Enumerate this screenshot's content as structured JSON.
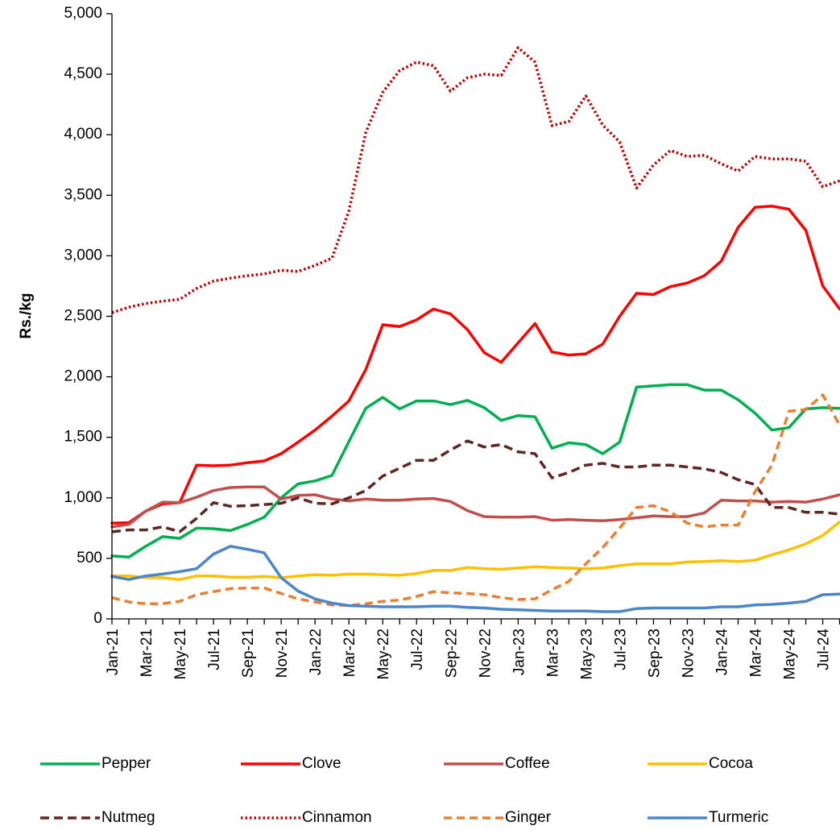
{
  "chart_data": {
    "type": "line",
    "title": "",
    "xlabel": "",
    "ylabel": "Rs./kg",
    "ylim": [
      0,
      5000
    ],
    "yticks": [
      "0",
      "500",
      "1,000",
      "1,500",
      "2,000",
      "2,500",
      "3,000",
      "3,500",
      "4,000",
      "4,500",
      "5,000"
    ],
    "x": [
      "Jan-21",
      "Feb-21",
      "Mar-21",
      "Apr-21",
      "May-21",
      "Jun-21",
      "Jul-21",
      "Aug-21",
      "Sep-21",
      "Oct-21",
      "Nov-21",
      "Dec-21",
      "Jan-22",
      "Feb-22",
      "Mar-22",
      "Apr-22",
      "May-22",
      "Jun-22",
      "Jul-22",
      "Aug-22",
      "Sep-22",
      "Oct-22",
      "Nov-22",
      "Dec-22",
      "Jan-23",
      "Feb-23",
      "Mar-23",
      "Apr-23",
      "May-23",
      "Jun-23",
      "Jul-23",
      "Aug-23",
      "Sep-23",
      "Oct-23",
      "Nov-23",
      "Dec-23",
      "Jan-24",
      "Feb-24",
      "Mar-24",
      "Apr-24",
      "May-24",
      "Jun-24",
      "Jul-24",
      "Aug-24"
    ],
    "x_tick_labels": [
      "Jan-21",
      "Mar-21",
      "May-21",
      "Jul-21",
      "Sep-21",
      "Nov-21",
      "Jan-22",
      "Mar-22",
      "May-22",
      "Jul-22",
      "Sep-22",
      "Nov-22",
      "Jan-23",
      "Mar-23",
      "May-23",
      "Jul-23",
      "Sep-23",
      "Nov-23",
      "Jan-24",
      "Mar-24",
      "May-24",
      "Jul-24"
    ],
    "legend_position": "bottom",
    "series": [
      {
        "name": "Pepper",
        "color": "#00B050",
        "dash": "solid",
        "values": [
          520,
          510,
          600,
          680,
          665,
          750,
          745,
          730,
          780,
          840,
          1000,
          1115,
          1140,
          1185,
          1465,
          1740,
          1830,
          1735,
          1800,
          1800,
          1770,
          1805,
          1745,
          1640,
          1680,
          1670,
          1410,
          1455,
          1440,
          1365,
          1460,
          1915,
          1925,
          1935,
          1935,
          1890,
          1890,
          1810,
          1700,
          1560,
          1580,
          1735,
          1745,
          1740
        ]
      },
      {
        "name": "Clove",
        "color": "#FF0000",
        "dash": "solid",
        "values": [
          790,
          795,
          890,
          950,
          960,
          1270,
          1265,
          1270,
          1290,
          1305,
          1365,
          1460,
          1560,
          1675,
          1800,
          2060,
          2430,
          2415,
          2470,
          2560,
          2520,
          2390,
          2200,
          2120,
          2280,
          2440,
          2205,
          2180,
          2190,
          2270,
          2500,
          2690,
          2680,
          2745,
          2775,
          2835,
          2955,
          3235,
          3400,
          3410,
          3385,
          3210,
          2750,
          2560
        ]
      },
      {
        "name": "Coffee",
        "color": "#C0504D",
        "dash": "solid",
        "values": [
          760,
          780,
          890,
          965,
          960,
          1005,
          1060,
          1085,
          1090,
          1090,
          990,
          1020,
          1025,
          990,
          975,
          990,
          980,
          980,
          990,
          995,
          970,
          895,
          845,
          840,
          840,
          845,
          815,
          820,
          815,
          810,
          820,
          835,
          850,
          845,
          845,
          875,
          980,
          975,
          975,
          965,
          970,
          965,
          990,
          1025
        ]
      },
      {
        "name": "Cocoa",
        "color": "#FFC000",
        "dash": "solid",
        "values": [
          355,
          355,
          340,
          340,
          325,
          355,
          355,
          345,
          345,
          350,
          340,
          355,
          365,
          360,
          370,
          370,
          365,
          360,
          375,
          400,
          400,
          425,
          415,
          410,
          420,
          430,
          425,
          420,
          415,
          420,
          440,
          455,
          455,
          455,
          470,
          475,
          480,
          475,
          485,
          530,
          570,
          620,
          690,
          800
        ]
      },
      {
        "name": "Nutmeg",
        "color": "#632523",
        "dash": "long-dash",
        "values": [
          720,
          735,
          735,
          760,
          720,
          830,
          960,
          930,
          935,
          945,
          955,
          1000,
          955,
          950,
          1000,
          1060,
          1180,
          1245,
          1310,
          1310,
          1395,
          1470,
          1420,
          1440,
          1380,
          1365,
          1165,
          1210,
          1270,
          1285,
          1255,
          1255,
          1270,
          1270,
          1255,
          1240,
          1210,
          1150,
          1110,
          920,
          920,
          880,
          880,
          865
        ]
      },
      {
        "name": "Cinnamon",
        "color": "#C00000",
        "dash": "dot",
        "values": [
          2530,
          2575,
          2605,
          2625,
          2640,
          2730,
          2790,
          2815,
          2835,
          2850,
          2880,
          2870,
          2920,
          2980,
          3370,
          4020,
          4350,
          4530,
          4600,
          4570,
          4360,
          4470,
          4500,
          4490,
          4720,
          4600,
          4075,
          4110,
          4320,
          4080,
          3940,
          3560,
          3750,
          3870,
          3820,
          3830,
          3760,
          3700,
          3820,
          3800,
          3800,
          3780,
          3570,
          3620
        ]
      },
      {
        "name": "Ginger",
        "color": "#ED7D31",
        "dash": "dash",
        "values": [
          175,
          140,
          125,
          125,
          145,
          200,
          225,
          250,
          255,
          255,
          210,
          165,
          140,
          115,
          110,
          125,
          145,
          155,
          185,
          225,
          215,
          210,
          200,
          175,
          160,
          165,
          240,
          310,
          455,
          590,
          750,
          920,
          935,
          885,
          790,
          760,
          775,
          775,
          1050,
          1270,
          1715,
          1730,
          1850,
          1600
        ]
      },
      {
        "name": "Turmeric",
        "color": "#4A86C8",
        "dash": "solid",
        "values": [
          350,
          325,
          355,
          370,
          390,
          415,
          535,
          600,
          575,
          545,
          340,
          230,
          165,
          130,
          110,
          105,
          100,
          100,
          100,
          105,
          105,
          95,
          90,
          80,
          75,
          70,
          65,
          65,
          65,
          60,
          60,
          85,
          90,
          90,
          90,
          90,
          100,
          100,
          115,
          120,
          130,
          145,
          200,
          205
        ]
      }
    ]
  }
}
